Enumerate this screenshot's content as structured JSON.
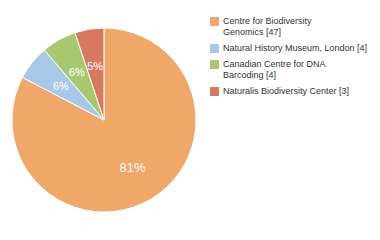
{
  "chart_data": {
    "type": "pie",
    "categories": [
      "Centre for Biodiversity\nGenomics [47]",
      "Natural History Museum, London [4]",
      "Canadian Centre for DNA\nBarcoding [4]",
      "Naturalis Biodiversity Center [3]"
    ],
    "values": [
      81,
      6,
      6,
      5
    ],
    "value_labels": [
      "81%",
      "6%",
      "6%",
      "5%"
    ],
    "colors": [
      "#f0a868",
      "#a8c8e8",
      "#a8c870",
      "#d87860"
    ],
    "data_labels": true,
    "legend": "upper right"
  }
}
